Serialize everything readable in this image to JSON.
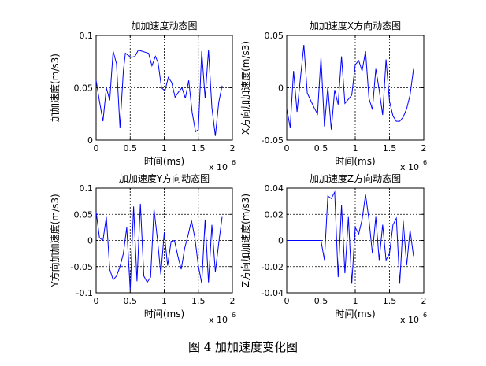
{
  "caption": "图 4 加加速度变化图",
  "line_color": "#0000ff",
  "chart_data": [
    {
      "type": "line",
      "title": "加加速度动态图",
      "xlabel": "时间(ms)",
      "ylabel": "加加速度(m/s3)",
      "x_exponent": "x 10",
      "x_exponent_power": "6",
      "xlim": [
        0,
        2
      ],
      "ylim": [
        0,
        0.1
      ],
      "xticks": [
        "0",
        "0.5",
        "1",
        "1.5",
        "2"
      ],
      "yticks": [
        "0",
        "0.05",
        "0.1"
      ],
      "grid": "dashed",
      "x": [
        0.0,
        0.05,
        0.1,
        0.15,
        0.2,
        0.25,
        0.3,
        0.35,
        0.4,
        0.43,
        0.47,
        0.52,
        0.57,
        0.62,
        0.67,
        0.72,
        0.77,
        0.82,
        0.87,
        0.91,
        0.96,
        1.01,
        1.06,
        1.11,
        1.16,
        1.21,
        1.26,
        1.31,
        1.36,
        1.41,
        1.46,
        1.5,
        1.55,
        1.6,
        1.65,
        1.7,
        1.75,
        1.8,
        1.85
      ],
      "y": [
        0.057,
        0.037,
        0.018,
        0.05,
        0.038,
        0.085,
        0.073,
        0.012,
        0.066,
        0.083,
        0.081,
        0.079,
        0.08,
        0.086,
        0.085,
        0.084,
        0.083,
        0.071,
        0.08,
        0.074,
        0.05,
        0.047,
        0.06,
        0.055,
        0.041,
        0.046,
        0.05,
        0.04,
        0.057,
        0.026,
        0.008,
        0.01,
        0.085,
        0.04,
        0.086,
        0.031,
        0.004,
        0.036,
        0.052
      ]
    },
    {
      "type": "line",
      "title": "加加速度X方向动态图",
      "xlabel": "时间(ms)",
      "ylabel": "X方向加加速度(m/s3)",
      "x_exponent": "x 10",
      "x_exponent_power": "6",
      "xlim": [
        0,
        2
      ],
      "ylim": [
        -0.05,
        0.05
      ],
      "xticks": [
        "0",
        "0.5",
        "1",
        "1.5",
        "2"
      ],
      "yticks": [
        "-0.05",
        "0",
        "0.05"
      ],
      "grid": "dashed",
      "x": [
        0.0,
        0.05,
        0.1,
        0.15,
        0.2,
        0.25,
        0.3,
        0.35,
        0.4,
        0.45,
        0.5,
        0.55,
        0.6,
        0.65,
        0.7,
        0.75,
        0.8,
        0.85,
        0.9,
        0.95,
        1.0,
        1.05,
        1.1,
        1.15,
        1.2,
        1.25,
        1.3,
        1.35,
        1.4,
        1.45,
        1.5,
        1.55,
        1.6,
        1.65,
        1.7,
        1.75,
        1.8,
        1.85
      ],
      "y": [
        -0.02,
        -0.038,
        0.016,
        -0.023,
        0.009,
        0.041,
        -0.005,
        -0.012,
        -0.019,
        -0.025,
        0.029,
        -0.037,
        0.001,
        -0.04,
        -0.002,
        -0.016,
        0.03,
        -0.015,
        -0.011,
        -0.007,
        0.022,
        0.026,
        0.016,
        0.035,
        -0.01,
        -0.021,
        0.018,
        -0.002,
        -0.026,
        0.027,
        -0.013,
        -0.027,
        -0.032,
        -0.032,
        -0.028,
        -0.02,
        -0.007,
        0.018
      ]
    },
    {
      "type": "line",
      "title": "加加速度Y方向动态图",
      "xlabel": "时间(ms)",
      "ylabel": "Y方向加加速度(m/s3)",
      "x_exponent": "x 10",
      "x_exponent_power": "6",
      "xlim": [
        0,
        2
      ],
      "ylim": [
        -0.1,
        0.1
      ],
      "xticks": [
        "0",
        "0.5",
        "1",
        "1.5",
        "2"
      ],
      "yticks": [
        "-0.1",
        "-0.05",
        "0",
        "0.05",
        "0.1"
      ],
      "grid": "dashed",
      "x": [
        0.0,
        0.05,
        0.1,
        0.15,
        0.2,
        0.25,
        0.3,
        0.35,
        0.4,
        0.45,
        0.5,
        0.55,
        0.6,
        0.65,
        0.7,
        0.75,
        0.8,
        0.85,
        0.9,
        0.95,
        1.0,
        1.05,
        1.1,
        1.15,
        1.2,
        1.25,
        1.3,
        1.35,
        1.4,
        1.45,
        1.5,
        1.55,
        1.6,
        1.65,
        1.7,
        1.75,
        1.8,
        1.85
      ],
      "y": [
        0.055,
        0.005,
        0.0,
        0.045,
        -0.055,
        -0.075,
        -0.068,
        -0.05,
        -0.025,
        0.025,
        -0.095,
        0.065,
        -0.078,
        0.07,
        -0.068,
        -0.08,
        -0.07,
        0.06,
        0.002,
        -0.065,
        0.015,
        -0.048,
        -0.002,
        0.0,
        -0.03,
        -0.055,
        -0.015,
        0.01,
        0.038,
        0.005,
        -0.048,
        -0.082,
        0.04,
        -0.08,
        0.03,
        -0.06,
        -0.005,
        0.045
      ]
    },
    {
      "type": "line",
      "title": "加加速度Z方向动态图",
      "xlabel": "时间(ms)",
      "ylabel": "Z方向加加速度(m/s3)",
      "x_exponent": "x 10",
      "x_exponent_power": "6",
      "xlim": [
        0,
        2
      ],
      "ylim": [
        -0.04,
        0.04
      ],
      "xticks": [
        "0",
        "0.5",
        "1",
        "1.5",
        "2"
      ],
      "yticks": [
        "-0.04",
        "-0.02",
        "0",
        "0.02",
        "0.04"
      ],
      "grid": "dashed",
      "x": [
        0.0,
        0.45,
        0.5,
        0.55,
        0.6,
        0.65,
        0.7,
        0.75,
        0.8,
        0.85,
        0.9,
        0.95,
        1.0,
        1.05,
        1.1,
        1.15,
        1.2,
        1.25,
        1.3,
        1.35,
        1.4,
        1.45,
        1.5,
        1.55,
        1.6,
        1.65,
        1.7,
        1.75,
        1.8,
        1.85
      ],
      "y": [
        0.0,
        0.0,
        0.0,
        -0.015,
        0.034,
        0.032,
        0.037,
        -0.028,
        0.027,
        -0.025,
        0.018,
        -0.033,
        0.01,
        0.005,
        0.016,
        0.035,
        0.016,
        -0.01,
        0.018,
        -0.015,
        0.012,
        -0.015,
        -0.01,
        0.012,
        0.017,
        -0.033,
        0.015,
        -0.019,
        0.008,
        -0.012
      ]
    }
  ]
}
